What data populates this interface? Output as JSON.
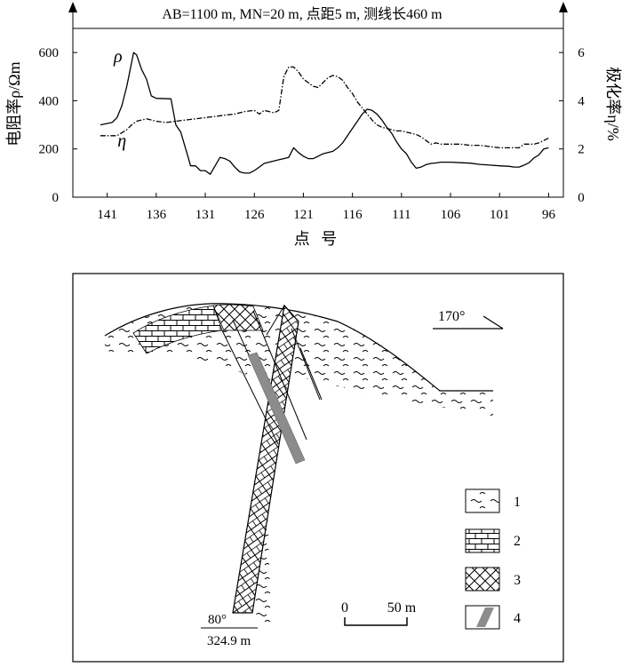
{
  "chart_data": {
    "type": "line",
    "title": "AB=1100 m, MN=20 m, 点距5 m, 测线长460 m",
    "xlabel": "点 号",
    "ylabel_left": "电阻率ρ/Ωm",
    "ylabel_right": "极化率η/%",
    "xlim": [
      144.5,
      94.5
    ],
    "ylim_left": [
      0,
      700
    ],
    "ylim_right": [
      0,
      7
    ],
    "x_ticks": [
      141,
      136,
      131,
      126,
      121,
      116,
      111,
      106,
      101,
      96
    ],
    "y_ticks_left": [
      0,
      200,
      400,
      600
    ],
    "y_ticks_right": [
      0,
      2,
      4,
      6
    ],
    "series": [
      {
        "name": "ρ",
        "axis": "left",
        "style": "solid",
        "label_at": [
          139.9,
          560
        ],
        "x": [
          141.7,
          140.5,
          140,
          139.5,
          139,
          138.5,
          138.3,
          138,
          137.5,
          137,
          136.5,
          136,
          134.5,
          134,
          133.5,
          133,
          132.5,
          132,
          131.5,
          131,
          130.5,
          130,
          129.5,
          129,
          128.5,
          128,
          127.5,
          127,
          126.5,
          126,
          125.5,
          125,
          124.5,
          124,
          123.5,
          123,
          122.5,
          122,
          121.5,
          121,
          120.5,
          120,
          119.5,
          119,
          118.5,
          118,
          117.5,
          117,
          116.5,
          116,
          115.5,
          115,
          114.5,
          114,
          113.5,
          113,
          112.5,
          112,
          111.5,
          111,
          110.5,
          110,
          109.5,
          109,
          108.5,
          108,
          107.5,
          107,
          106,
          105,
          104,
          103,
          102,
          101,
          100,
          99.5,
          99,
          98.5,
          98,
          97.5,
          97,
          96.5,
          96
        ],
        "values": [
          300,
          310,
          330,
          380,
          460,
          560,
          600,
          590,
          530,
          490,
          420,
          410,
          408,
          300,
          270,
          200,
          130,
          130,
          110,
          110,
          95,
          130,
          165,
          160,
          150,
          125,
          105,
          100,
          100,
          110,
          125,
          140,
          145,
          150,
          155,
          160,
          165,
          205,
          185,
          170,
          160,
          160,
          170,
          180,
          185,
          190,
          205,
          225,
          255,
          285,
          315,
          345,
          365,
          360,
          345,
          320,
          290,
          265,
          230,
          200,
          180,
          145,
          120,
          125,
          135,
          140,
          142,
          145,
          145,
          143,
          141,
          136,
          133,
          130,
          128,
          125,
          125,
          133,
          143,
          163,
          175,
          200,
          205
        ]
      },
      {
        "name": "η",
        "axis": "right",
        "style": "dash-dot",
        "label_at": [
          139.5,
          2.1
        ],
        "x": [
          141.7,
          140,
          139,
          138.5,
          138,
          137,
          136,
          135,
          134,
          133,
          132,
          131,
          130,
          129,
          128,
          127,
          126,
          125.5,
          125,
          124.5,
          124,
          123.5,
          123,
          122.5,
          122,
          121.5,
          121,
          120.5,
          120,
          119.5,
          119,
          118.5,
          118,
          117.5,
          117,
          116.5,
          116,
          115.5,
          115,
          114.5,
          114,
          113.5,
          113,
          112.5,
          112,
          111.5,
          111,
          110.5,
          110,
          109.5,
          109,
          108.5,
          108,
          107.5,
          107,
          106,
          105,
          104,
          103,
          102,
          101,
          100,
          99.5,
          99,
          98.5,
          98,
          97.5,
          97,
          96.5,
          96
        ],
        "values": [
          2.55,
          2.55,
          2.8,
          3.0,
          3.15,
          3.25,
          3.15,
          3.1,
          3.15,
          3.2,
          3.25,
          3.3,
          3.35,
          3.4,
          3.45,
          3.55,
          3.6,
          3.45,
          3.6,
          3.55,
          3.5,
          3.6,
          5.0,
          5.4,
          5.4,
          5.2,
          4.9,
          4.75,
          4.6,
          4.55,
          4.75,
          4.95,
          5.05,
          5.0,
          4.85,
          4.55,
          4.3,
          3.95,
          3.7,
          3.45,
          3.2,
          3.0,
          2.9,
          2.85,
          2.8,
          2.75,
          2.75,
          2.7,
          2.65,
          2.6,
          2.5,
          2.35,
          2.2,
          2.25,
          2.2,
          2.2,
          2.2,
          2.15,
          2.15,
          2.1,
          2.05,
          2.05,
          2.05,
          2.05,
          2.2,
          2.2,
          2.2,
          2.25,
          2.35,
          2.45
        ]
      }
    ]
  },
  "section": {
    "orientation_label": "170°",
    "dip_label": "80°",
    "depth_label": "324.9 m",
    "scale_labels": [
      "0",
      "50 m"
    ],
    "legend": [
      {
        "id": "1",
        "label": "1"
      },
      {
        "id": "2",
        "label": "2"
      },
      {
        "id": "3",
        "label": "3"
      },
      {
        "id": "4",
        "label": "4"
      }
    ],
    "ore_color": "#8c8c8c"
  }
}
